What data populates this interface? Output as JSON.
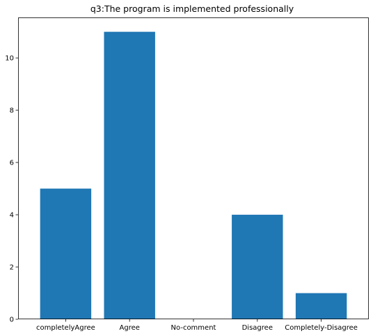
{
  "chart_data": {
    "type": "bar",
    "title": "q3:The program is implemented professionally",
    "categories": [
      "completelyAgree",
      "Agree",
      "No-comment",
      "Disagree",
      "Completely-Disagree"
    ],
    "values": [
      5,
      11,
      0,
      4,
      1
    ],
    "xlabel": "",
    "ylabel": "",
    "ylim": [
      0,
      11.55
    ],
    "yticks": [
      0,
      2,
      4,
      6,
      8,
      10
    ],
    "grid": false,
    "bar_color": "#1f77b4"
  }
}
